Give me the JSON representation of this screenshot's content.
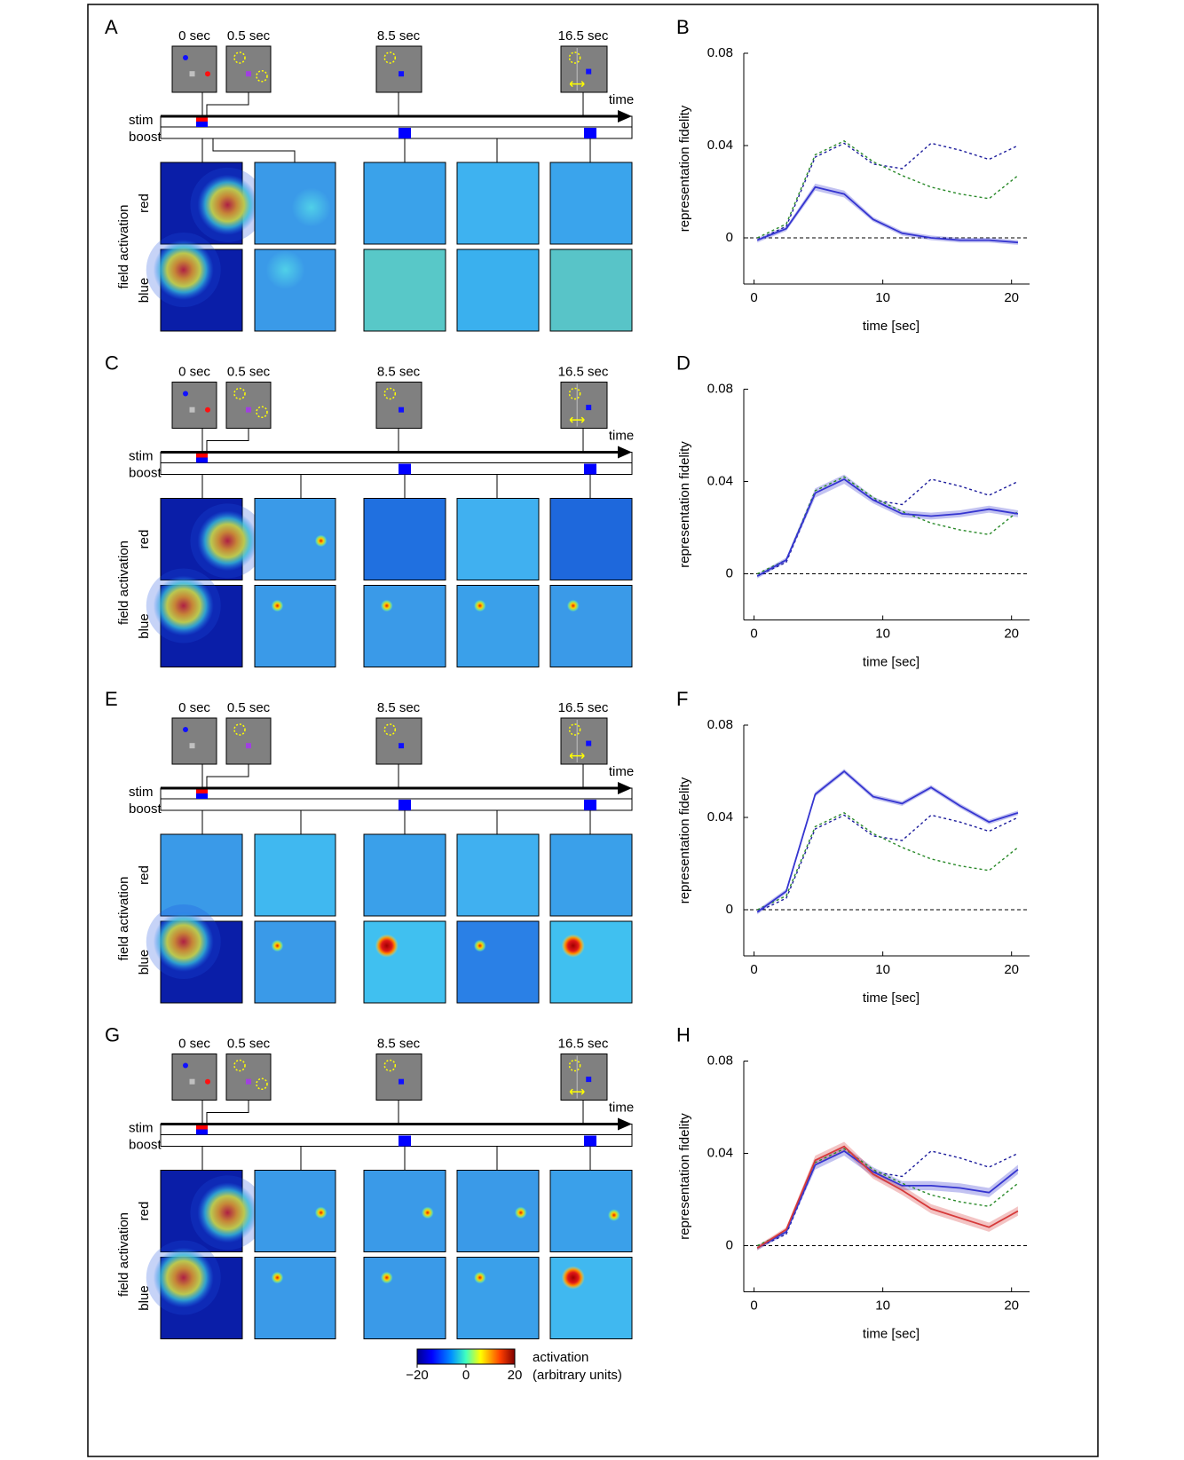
{
  "simulations": [
    {
      "letter": "A",
      "times": [
        "0 sec",
        "0.5 sec",
        "8.5 sec",
        "16.5 sec"
      ],
      "time_axis": "time",
      "rows": [
        "stim",
        "boost"
      ],
      "field_axis": "field activation",
      "fields": [
        "red",
        "blue"
      ]
    },
    {
      "letter": "C",
      "times": [
        "0 sec",
        "0.5 sec",
        "8.5 sec",
        "16.5 sec"
      ],
      "time_axis": "time",
      "rows": [
        "stim",
        "boost"
      ],
      "field_axis": "field activation",
      "fields": [
        "red",
        "blue"
      ]
    },
    {
      "letter": "E",
      "times": [
        "0 sec",
        "0.5 sec",
        "8.5 sec",
        "16.5 sec"
      ],
      "time_axis": "time",
      "rows": [
        "stim",
        "boost"
      ],
      "field_axis": "field activation",
      "fields": [
        "red",
        "blue"
      ]
    },
    {
      "letter": "G",
      "times": [
        "0 sec",
        "0.5 sec",
        "8.5 sec",
        "16.5 sec"
      ],
      "time_axis": "time",
      "rows": [
        "stim",
        "boost"
      ],
      "field_axis": "field activation",
      "fields": [
        "red",
        "blue"
      ]
    }
  ],
  "colorbar": {
    "ticks": [
      {
        "value": -20,
        "label": "−20"
      },
      0,
      20
    ],
    "title": "activation",
    "subtitle": "(arbitrary units)"
  },
  "chart_data": [
    {
      "type": "line",
      "label": "B",
      "xlabel": "time [sec]",
      "ylabel": "representation fidelity",
      "x": [
        0.25,
        2.5,
        4.75,
        7,
        9.25,
        11.5,
        13.75,
        16,
        18.25,
        20.5
      ],
      "xlim": [
        -0.8,
        21.4
      ],
      "xticks": [
        0,
        10,
        20
      ],
      "ylim": [
        -0.02,
        0.08
      ],
      "yticks": [
        0,
        0.04,
        0.08
      ],
      "hline": 0,
      "series": [
        {
          "color": "#1c1c9c",
          "dash": true,
          "values": [
            -0.001,
            0.005,
            0.035,
            0.041,
            0.032,
            0.03,
            0.041,
            0.038,
            0.034,
            0.04
          ]
        },
        {
          "color": "#2a8a2a",
          "dash": true,
          "values": [
            0,
            0.006,
            0.036,
            0.042,
            0.033,
            0.027,
            0.022,
            0.019,
            0.017,
            0.027
          ]
        },
        {
          "color": "#3535d0",
          "dash": false,
          "values": [
            -0.001,
            0.004,
            0.022,
            0.019,
            0.008,
            0.002,
            0,
            -0.001,
            -0.001,
            -0.002
          ],
          "error": [
            0.001,
            0.001,
            0.0015,
            0.0015,
            0.001,
            0.001,
            0.001,
            0.001,
            0.001,
            0.001
          ]
        }
      ]
    },
    {
      "type": "line",
      "label": "D",
      "xlabel": "time [sec]",
      "ylabel": "representation fidelity",
      "x": [
        0.25,
        2.5,
        4.75,
        7,
        9.25,
        11.5,
        13.75,
        16,
        18.25,
        20.5
      ],
      "xlim": [
        -0.8,
        21.4
      ],
      "xticks": [
        0,
        10,
        20
      ],
      "ylim": [
        -0.02,
        0.08
      ],
      "yticks": [
        0,
        0.04,
        0.08
      ],
      "hline": 0,
      "series": [
        {
          "color": "#1c1c9c",
          "dash": true,
          "values": [
            -0.001,
            0.005,
            0.035,
            0.041,
            0.032,
            0.03,
            0.041,
            0.038,
            0.034,
            0.04
          ]
        },
        {
          "color": "#2a8a2a",
          "dash": true,
          "values": [
            0,
            0.006,
            0.036,
            0.042,
            0.033,
            0.027,
            0.022,
            0.019,
            0.017,
            0.027
          ]
        },
        {
          "color": "#3535d0",
          "dash": false,
          "values": [
            -0.001,
            0.006,
            0.035,
            0.041,
            0.032,
            0.026,
            0.025,
            0.026,
            0.028,
            0.026
          ],
          "error": [
            0.001,
            0.001,
            0.002,
            0.002,
            0.0015,
            0.0015,
            0.0015,
            0.0015,
            0.0015,
            0.0015
          ]
        }
      ]
    },
    {
      "type": "line",
      "label": "F",
      "xlabel": "time [sec]",
      "ylabel": "representation fidelity",
      "x": [
        0.25,
        2.5,
        4.75,
        7,
        9.25,
        11.5,
        13.75,
        16,
        18.25,
        20.5
      ],
      "xlim": [
        -0.8,
        21.4
      ],
      "xticks": [
        0,
        10,
        20
      ],
      "ylim": [
        -0.02,
        0.08
      ],
      "yticks": [
        0,
        0.04,
        0.08
      ],
      "hline": 0,
      "series": [
        {
          "color": "#1c1c9c",
          "dash": true,
          "values": [
            -0.001,
            0.005,
            0.035,
            0.041,
            0.032,
            0.03,
            0.041,
            0.038,
            0.034,
            0.04
          ]
        },
        {
          "color": "#2a8a2a",
          "dash": true,
          "values": [
            0,
            0.006,
            0.036,
            0.042,
            0.033,
            0.027,
            0.022,
            0.019,
            0.017,
            0.027
          ]
        },
        {
          "color": "#3535d0",
          "dash": false,
          "values": [
            -0.001,
            0.008,
            0.05,
            0.06,
            0.049,
            0.046,
            0.053,
            0.045,
            0.038,
            0.042
          ],
          "error": [
            0.001,
            0.001,
            0.001,
            0.001,
            0.001,
            0.001,
            0.001,
            0.001,
            0.001,
            0.001
          ]
        }
      ]
    },
    {
      "type": "line",
      "label": "H",
      "xlabel": "time [sec]",
      "ylabel": "representation fidelity",
      "x": [
        0.25,
        2.5,
        4.75,
        7,
        9.25,
        11.5,
        13.75,
        16,
        18.25,
        20.5
      ],
      "xlim": [
        -0.8,
        21.4
      ],
      "xticks": [
        0,
        10,
        20
      ],
      "ylim": [
        -0.02,
        0.08
      ],
      "yticks": [
        0,
        0.04,
        0.08
      ],
      "hline": 0,
      "series": [
        {
          "color": "#1c1c9c",
          "dash": true,
          "values": [
            -0.001,
            0.005,
            0.035,
            0.041,
            0.032,
            0.03,
            0.041,
            0.038,
            0.034,
            0.04
          ]
        },
        {
          "color": "#2a8a2a",
          "dash": true,
          "values": [
            0,
            0.006,
            0.036,
            0.042,
            0.033,
            0.027,
            0.022,
            0.019,
            0.017,
            0.027
          ]
        },
        {
          "color": "#3535d0",
          "dash": false,
          "values": [
            -0.001,
            0.006,
            0.035,
            0.041,
            0.032,
            0.026,
            0.026,
            0.025,
            0.023,
            0.033
          ],
          "error": [
            0.001,
            0.001,
            0.002,
            0.002,
            0.002,
            0.002,
            0.002,
            0.002,
            0.002,
            0.002
          ]
        },
        {
          "color": "#d63a3a",
          "dash": false,
          "values": [
            -0.001,
            0.007,
            0.037,
            0.043,
            0.031,
            0.024,
            0.016,
            0.012,
            0.008,
            0.015
          ],
          "error": [
            0.001,
            0.001,
            0.002,
            0.002,
            0.002,
            0.002,
            0.002,
            0.002,
            0.002,
            0.002
          ]
        }
      ]
    }
  ]
}
